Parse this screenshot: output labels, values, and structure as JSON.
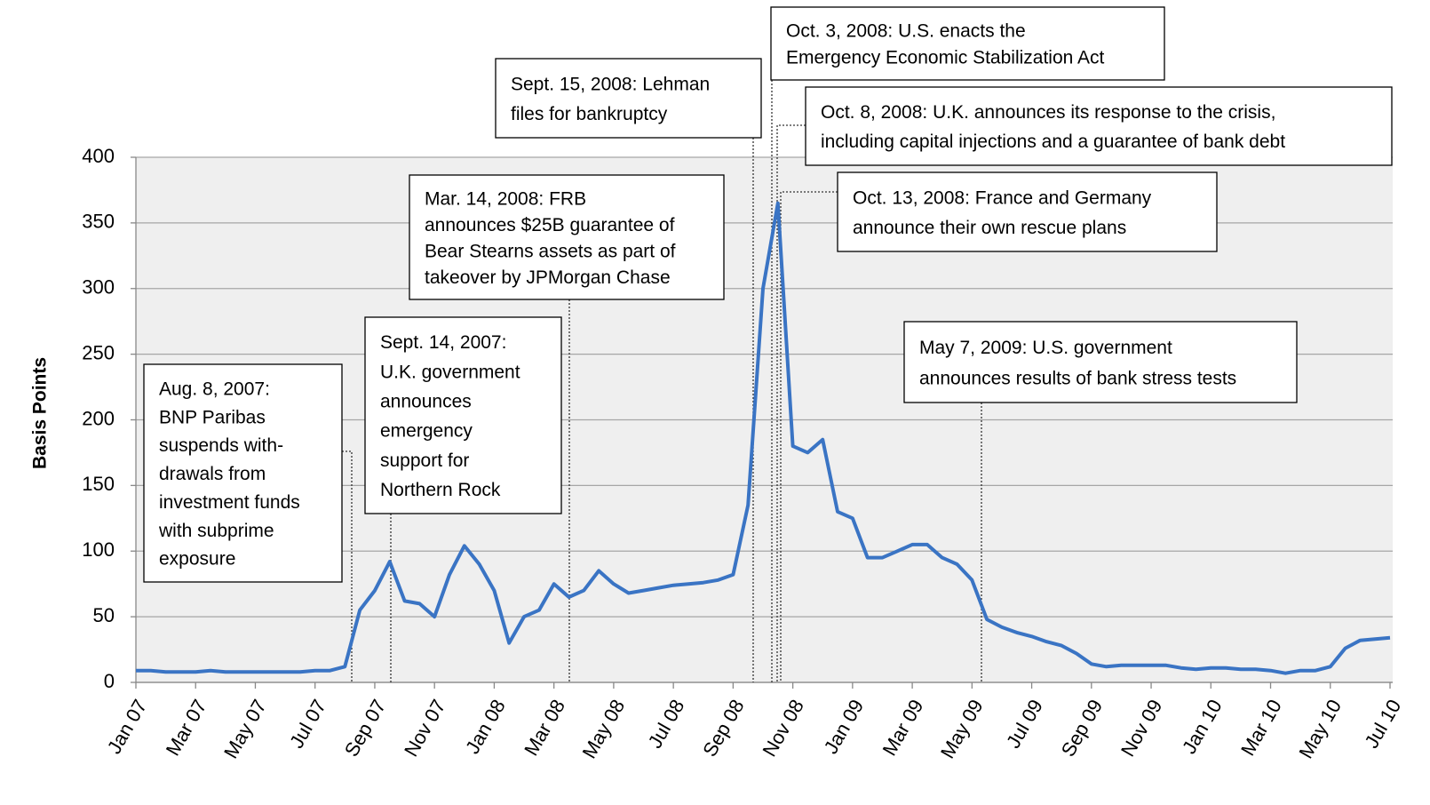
{
  "chart_data": {
    "type": "line",
    "y_label": "Basis Points",
    "categories": [
      "Jan 07",
      null,
      null,
      null,
      "Mar 07",
      null,
      null,
      null,
      "May 07",
      null,
      null,
      null,
      "Jul 07",
      null,
      null,
      null,
      "Sep 07",
      null,
      null,
      null,
      "Nov 07",
      null,
      null,
      null,
      "Jan 08",
      null,
      null,
      null,
      "Mar 08",
      null,
      null,
      null,
      "May 08",
      null,
      null,
      null,
      "Jul 08",
      null,
      null,
      null,
      "Sep 08",
      null,
      null,
      null,
      "Nov 08",
      null,
      null,
      null,
      "Jan 09",
      null,
      null,
      null,
      "Mar 09",
      null,
      null,
      null,
      "May 09",
      null,
      null,
      null,
      "Jul 09",
      null,
      null,
      null,
      "Sep 09",
      null,
      null,
      null,
      "Nov 09",
      null,
      null,
      null,
      "Jan 10",
      null,
      null,
      null,
      "Mar 10",
      null,
      null,
      null,
      "May 10",
      null,
      null,
      null,
      "Jul 10"
    ],
    "values": [
      9,
      9,
      8,
      8,
      8,
      9,
      8,
      8,
      8,
      8,
      8,
      8,
      9,
      9,
      12,
      55,
      70,
      92,
      62,
      60,
      50,
      82,
      104,
      90,
      70,
      30,
      50,
      55,
      75,
      65,
      70,
      85,
      75,
      68,
      70,
      72,
      74,
      75,
      76,
      78,
      82,
      135,
      300,
      365,
      180,
      175,
      185,
      130,
      125,
      95,
      95,
      100,
      105,
      105,
      95,
      90,
      78,
      48,
      42,
      38,
      35,
      31,
      28,
      22,
      14,
      12,
      13,
      13,
      13,
      13,
      11,
      10,
      11,
      11,
      10,
      10,
      9,
      7,
      9,
      9,
      12,
      26,
      32,
      33,
      34
    ],
    "color": "#3a74c4",
    "ylim": [
      0,
      400
    ],
    "yticks": [
      0,
      50,
      100,
      150,
      200,
      250,
      300,
      350,
      400
    ],
    "grid": true,
    "annotations": [
      {
        "lines": [
          "Aug. 8, 2007:",
          "BNP Paribas",
          "suspends with-",
          "drawals from",
          "investment funds",
          "with subprime",
          "exposure"
        ]
      },
      {
        "lines": [
          "Sept. 14, 2007:",
          "U.K. government",
          "announces",
          "emergency",
          "support for",
          "Northern Rock"
        ]
      },
      {
        "lines": [
          "Mar. 14, 2008: FRB",
          "announces $25B guarantee of",
          "Bear Stearns assets as part of",
          "takeover by JPMorgan Chase"
        ]
      },
      {
        "lines": [
          "Sept. 15, 2008: Lehman",
          "files for bankruptcy"
        ]
      },
      {
        "lines": [
          "Oct. 3, 2008: U.S. enacts the",
          "Emergency Economic Stabilization Act"
        ]
      },
      {
        "lines": [
          "Oct. 8, 2008: U.K. announces its response to the crisis,",
          "including capital injections and a guarantee of bank debt"
        ]
      },
      {
        "lines": [
          "Oct. 13, 2008: France and Germany",
          "announce their own rescue plans"
        ]
      },
      {
        "lines": [
          "May 7, 2009: U.S. government",
          "announces results of bank stress tests"
        ]
      }
    ]
  }
}
